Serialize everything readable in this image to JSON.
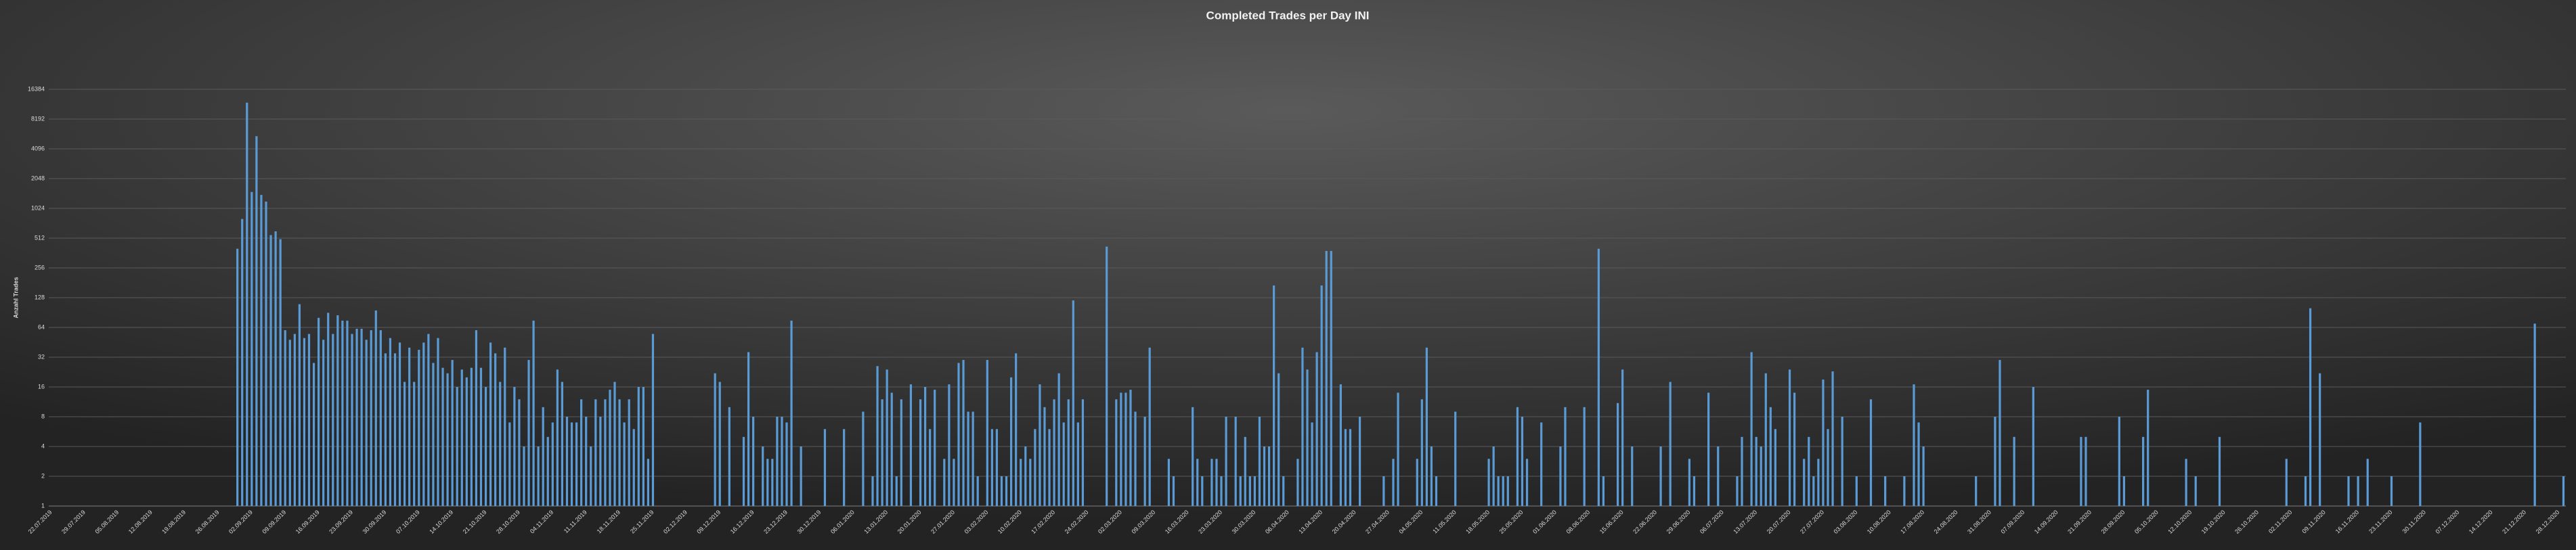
{
  "chart_data": {
    "type": "bar",
    "title": "Completed Trades per Day INI",
    "y_label": "Anzahl Trades",
    "color": "#5b9bd5",
    "log_scale": true,
    "grid": true,
    "ylim": [
      1,
      16384
    ],
    "yticks": [
      1,
      2,
      4,
      8,
      16,
      32,
      64,
      128,
      256,
      512,
      1024,
      2048,
      4096,
      8192,
      16384
    ],
    "categories": [
      "22.07.2019",
      null,
      null,
      null,
      null,
      null,
      null,
      "29.07.2019",
      null,
      null,
      null,
      null,
      null,
      null,
      "05.08.2019",
      null,
      null,
      null,
      null,
      null,
      null,
      "12.08.2019",
      null,
      null,
      null,
      null,
      null,
      null,
      "19.08.2019",
      null,
      null,
      null,
      null,
      null,
      null,
      "26.08.2019",
      null,
      null,
      null,
      null,
      null,
      null,
      "02.09.2019",
      null,
      null,
      null,
      null,
      null,
      null,
      "09.09.2019",
      null,
      null,
      null,
      null,
      null,
      null,
      "16.09.2019",
      null,
      null,
      null,
      null,
      null,
      null,
      "23.09.2019",
      null,
      null,
      null,
      null,
      null,
      null,
      "30.09.2019",
      null,
      null,
      null,
      null,
      null,
      null,
      "07.10.2019",
      null,
      null,
      null,
      null,
      null,
      null,
      "14.10.2019",
      null,
      null,
      null,
      null,
      null,
      null,
      "21.10.2019",
      null,
      null,
      null,
      null,
      null,
      null,
      "28.10.2019",
      null,
      null,
      null,
      null,
      null,
      null,
      "04.11.2019",
      null,
      null,
      null,
      null,
      null,
      null,
      "11.11.2019",
      null,
      null,
      null,
      null,
      null,
      null,
      "18.11.2019",
      null,
      null,
      null,
      null,
      null,
      null,
      "25.11.2019",
      null,
      null,
      null,
      null,
      null,
      null,
      "02.12.2019",
      null,
      null,
      null,
      null,
      null,
      null,
      "09.12.2019",
      null,
      null,
      null,
      null,
      null,
      null,
      "16.12.2019",
      null,
      null,
      null,
      null,
      null,
      null,
      "23.12.2019",
      null,
      null,
      null,
      null,
      null,
      null,
      "30.12.2019",
      null,
      null,
      null,
      null,
      null,
      null,
      "06.01.2020",
      null,
      null,
      null,
      null,
      null,
      null,
      "13.01.2020",
      null,
      null,
      null,
      null,
      null,
      null,
      "20.01.2020",
      null,
      null,
      null,
      null,
      null,
      null,
      "27.01.2020",
      null,
      null,
      null,
      null,
      null,
      null,
      "03.02.2020",
      null,
      null,
      null,
      null,
      null,
      null,
      "10.02.2020",
      null,
      null,
      null,
      null,
      null,
      null,
      "17.02.2020",
      null,
      null,
      null,
      null,
      null,
      null,
      "24.02.2020",
      null,
      null,
      null,
      null,
      null,
      null,
      "02.03.2020",
      null,
      null,
      null,
      null,
      null,
      null,
      "09.03.2020",
      null,
      null,
      null,
      null,
      null,
      null,
      "16.03.2020",
      null,
      null,
      null,
      null,
      null,
      null,
      "23.03.2020",
      null,
      null,
      null,
      null,
      null,
      null,
      "30.03.2020",
      null,
      null,
      null,
      null,
      null,
      null,
      "06.04.2020",
      null,
      null,
      null,
      null,
      null,
      null,
      "13.04.2020",
      null,
      null,
      null,
      null,
      null,
      null,
      "20.04.2020",
      null,
      null,
      null,
      null,
      null,
      null,
      "27.04.2020",
      null,
      null,
      null,
      null,
      null,
      null,
      "04.05.2020",
      null,
      null,
      null,
      null,
      null,
      null,
      "11.05.2020",
      null,
      null,
      null,
      null,
      null,
      null,
      "18.05.2020",
      null,
      null,
      null,
      null,
      null,
      null,
      "25.05.2020",
      null,
      null,
      null,
      null,
      null,
      null,
      "01.06.2020",
      null,
      null,
      null,
      null,
      null,
      null,
      "08.06.2020",
      null,
      null,
      null,
      null,
      null,
      null,
      "15.06.2020",
      null,
      null,
      null,
      null,
      null,
      null,
      "22.06.2020",
      null,
      null,
      null,
      null,
      null,
      null,
      "29.06.2020",
      null,
      null,
      null,
      null,
      null,
      null,
      "06.07.2020",
      null,
      null,
      null,
      null,
      null,
      null,
      "13.07.2020",
      null,
      null,
      null,
      null,
      null,
      null,
      "20.07.2020",
      null,
      null,
      null,
      null,
      null,
      null,
      "27.07.2020",
      null,
      null,
      null,
      null,
      null,
      null,
      "03.08.2020",
      null,
      null,
      null,
      null,
      null,
      null,
      "10.08.2020",
      null,
      null,
      null,
      null,
      null,
      null,
      "17.08.2020",
      null,
      null,
      null,
      null,
      null,
      null,
      "24.08.2020",
      null,
      null,
      null,
      null,
      null,
      null,
      "31.08.2020",
      null,
      null,
      null,
      null,
      null,
      null,
      "07.09.2020",
      null,
      null,
      null,
      null,
      null,
      null,
      "14.09.2020",
      null,
      null,
      null,
      null,
      null,
      null,
      "21.09.2020",
      null,
      null,
      null,
      null,
      null,
      null,
      "28.09.2020",
      null,
      null,
      null,
      null,
      null,
      null,
      "05.10.2020",
      null,
      null,
      null,
      null,
      null,
      null,
      "12.10.2020",
      null,
      null,
      null,
      null,
      null,
      null,
      "19.10.2020",
      null,
      null,
      null,
      null,
      null,
      null,
      "26.10.2020",
      null,
      null,
      null,
      null,
      null,
      null,
      "02.11.2020",
      null,
      null,
      null,
      null,
      null,
      null,
      "09.11.2020",
      null,
      null,
      null,
      null,
      null,
      null,
      "16.11.2020",
      null,
      null,
      null,
      null,
      null,
      null,
      "23.11.2020",
      null,
      null,
      null,
      null,
      null,
      null,
      "30.11.2020",
      null,
      null,
      null,
      null,
      null,
      null,
      "07.12.2020",
      null,
      null,
      null,
      null,
      null,
      null,
      "14.12.2020",
      null,
      null,
      null,
      null,
      null,
      null,
      "21.12.2020",
      null,
      null,
      null,
      null,
      null,
      null,
      "28.12.2020",
      null
    ],
    "values": [
      null,
      null,
      null,
      null,
      null,
      null,
      null,
      null,
      null,
      null,
      null,
      null,
      null,
      null,
      null,
      null,
      null,
      null,
      null,
      null,
      null,
      null,
      null,
      null,
      null,
      null,
      null,
      null,
      null,
      null,
      null,
      null,
      null,
      null,
      null,
      null,
      null,
      null,
      null,
      400,
      800,
      12000,
      1500,
      5500,
      1400,
      1200,
      550,
      600,
      500,
      60,
      48,
      55,
      110,
      50,
      55,
      28,
      80,
      48,
      90,
      55,
      85,
      75,
      75,
      55,
      62,
      62,
      48,
      60,
      95,
      60,
      35,
      50,
      35,
      45,
      18,
      40,
      18,
      38,
      45,
      55,
      28,
      50,
      25,
      22,
      30,
      16,
      24,
      20,
      25,
      60,
      25,
      16,
      45,
      35,
      18,
      40,
      7,
      16,
      12,
      4,
      30,
      75,
      4,
      10,
      5,
      7,
      24,
      18,
      8,
      7,
      7,
      12,
      8,
      4,
      12,
      8,
      12,
      15,
      18,
      12,
      7,
      12,
      6,
      16,
      16,
      3,
      55,
      null,
      null,
      null,
      null,
      null,
      null,
      null,
      null,
      null,
      null,
      null,
      null,
      22,
      18,
      null,
      10,
      null,
      null,
      5,
      36,
      8,
      null,
      4,
      3,
      3,
      8,
      8,
      7,
      75,
      null,
      4,
      null,
      null,
      null,
      null,
      6,
      null,
      null,
      null,
      6,
      null,
      null,
      null,
      9,
      null,
      2,
      26,
      12,
      24,
      14,
      2,
      12,
      null,
      17,
      null,
      12,
      16,
      6,
      15,
      null,
      3,
      17,
      3,
      28,
      30,
      9,
      9,
      2,
      null,
      30,
      6,
      6,
      2,
      2,
      20,
      35,
      3,
      4,
      3,
      6,
      17,
      10,
      6,
      12,
      22,
      7,
      12,
      120,
      7,
      12,
      null,
      null,
      null,
      null,
      420,
      null,
      12,
      14,
      14,
      15,
      9,
      null,
      8,
      40,
      null,
      null,
      null,
      3,
      2,
      null,
      null,
      null,
      10,
      3,
      2,
      null,
      3,
      3,
      2,
      8,
      null,
      8,
      2,
      5,
      2,
      2,
      8,
      4,
      4,
      170,
      22,
      2,
      null,
      null,
      3,
      40,
      24,
      7,
      36,
      170,
      380,
      380,
      null,
      17,
      6,
      6,
      null,
      8,
      null,
      null,
      null,
      null,
      2,
      null,
      3,
      14,
      null,
      null,
      null,
      3,
      12,
      40,
      4,
      2,
      null,
      null,
      null,
      9,
      null,
      null,
      null,
      null,
      null,
      null,
      3,
      4,
      2,
      2,
      2,
      null,
      10,
      8,
      3,
      null,
      null,
      7,
      null,
      null,
      null,
      4,
      10,
      null,
      null,
      null,
      10,
      null,
      null,
      400,
      2,
      null,
      null,
      11,
      24,
      null,
      4,
      null,
      null,
      null,
      null,
      null,
      4,
      null,
      18,
      null,
      null,
      null,
      3,
      2,
      null,
      null,
      14,
      null,
      4,
      null,
      null,
      null,
      2,
      5,
      null,
      36,
      5,
      4,
      22,
      10,
      6,
      null,
      null,
      24,
      14,
      null,
      3,
      5,
      2,
      3,
      19,
      6,
      23,
      null,
      8,
      null,
      null,
      2,
      null,
      null,
      12,
      null,
      null,
      2,
      null,
      null,
      null,
      2,
      null,
      17,
      7,
      4,
      null,
      null,
      null,
      null,
      null,
      null,
      null,
      null,
      null,
      null,
      2,
      null,
      null,
      null,
      8,
      30,
      null,
      null,
      5,
      null,
      null,
      null,
      16,
      null,
      null,
      null,
      null,
      null,
      null,
      null,
      null,
      null,
      5,
      5,
      null,
      null,
      null,
      null,
      null,
      null,
      8,
      2,
      null,
      null,
      null,
      5,
      15,
      null,
      null,
      null,
      null,
      null,
      null,
      null,
      3,
      null,
      2,
      null,
      null,
      null,
      null,
      5,
      null,
      null,
      null,
      null,
      null,
      null,
      null,
      null,
      null,
      null,
      null,
      null,
      null,
      3,
      null,
      null,
      null,
      2,
      100,
      null,
      22,
      null,
      null,
      null,
      null,
      null,
      2,
      null,
      2,
      null,
      3,
      null,
      null,
      null,
      null,
      2,
      null,
      null,
      null,
      null,
      null,
      7,
      null,
      null,
      null,
      null,
      null,
      null,
      null,
      null,
      null,
      null,
      null,
      null,
      null,
      null,
      null,
      null,
      null,
      null,
      null,
      null,
      null,
      null,
      null,
      70,
      null,
      null,
      null,
      null,
      null,
      2
    ]
  }
}
